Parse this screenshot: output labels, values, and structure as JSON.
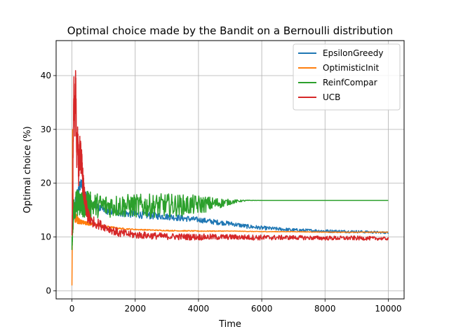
{
  "chart_data": {
    "type": "line",
    "title": "Optimal choice made by the Bandit on a Bernoulli distribution",
    "xlabel": "Time",
    "ylabel": "Optimal choice (%)",
    "xlim": [
      -500,
      10500
    ],
    "ylim": [
      -1.5,
      46.5
    ],
    "x_ticks": [
      0,
      2000,
      4000,
      6000,
      8000,
      10000
    ],
    "y_ticks": [
      0,
      10,
      20,
      30,
      40
    ],
    "grid": true,
    "legend_position": "top-right",
    "series": [
      {
        "name": "EpsilonGreedy",
        "color": "#1f77b4",
        "x": [
          0,
          50,
          100,
          150,
          200,
          250,
          300,
          350,
          400,
          500,
          600,
          800,
          1000,
          1500,
          2000,
          2500,
          3000,
          3500,
          4000,
          4500,
          5000,
          5500,
          6000,
          7000,
          8000,
          9000,
          10000
        ],
        "y": [
          11,
          14,
          16,
          17.5,
          18.5,
          19.5,
          20,
          19,
          18,
          17,
          16,
          15.5,
          15,
          14.5,
          14.2,
          14,
          13.8,
          13.5,
          13.2,
          12.8,
          12.5,
          12,
          11.7,
          11.3,
          11.1,
          11,
          10.8
        ],
        "noise": [
          0.3,
          1.5,
          1.2,
          1,
          1,
          0.9,
          0.8,
          0.8,
          0.8,
          0.8,
          0.8,
          0.7,
          0.7,
          0.7,
          0.7,
          0.7,
          0.6,
          0.6,
          0.5,
          0.5,
          0.4,
          0.4,
          0.35,
          0.3,
          0.3,
          0.25,
          0.2
        ]
      },
      {
        "name": "OptimisticInit",
        "color": "#ff7f0e",
        "x": [
          0,
          10,
          20,
          30,
          50,
          80,
          120,
          200,
          300,
          500,
          800,
          1000,
          1500,
          2000,
          3000,
          4000,
          5000,
          6000,
          7000,
          8000,
          9000,
          10000
        ],
        "y": [
          1,
          10,
          30,
          20,
          15,
          14,
          13.5,
          13,
          12.8,
          12.5,
          12.2,
          12,
          11.6,
          11.4,
          11.2,
          11.1,
          11.1,
          11,
          11,
          10.9,
          10.9,
          10.9
        ],
        "noise": [
          0,
          2,
          2,
          2,
          1.5,
          1.2,
          1,
          0.6,
          0.4,
          0.3,
          0.2,
          0.2,
          0.15,
          0.1,
          0.1,
          0.1,
          0.05,
          0.05,
          0.05,
          0.05,
          0.05,
          0.05
        ]
      },
      {
        "name": "ReinfCompar",
        "color": "#2ca02c",
        "x": [
          0,
          50,
          100,
          200,
          300,
          500,
          1000,
          1500,
          2000,
          2500,
          3000,
          3500,
          4000,
          4500,
          5000,
          5300,
          5600,
          6000,
          7000,
          8000,
          9000,
          10000
        ],
        "y": [
          8.5,
          15,
          16,
          16.5,
          16.2,
          16,
          15.8,
          15.8,
          15.8,
          15.8,
          15.9,
          15.9,
          16,
          16.2,
          16.5,
          16.7,
          16.8,
          16.8,
          16.8,
          16.8,
          16.8,
          16.8
        ],
        "noise": [
          1,
          2.5,
          2.5,
          2.5,
          2.5,
          2.5,
          2.2,
          2.2,
          2.2,
          2.2,
          2.2,
          2.0,
          1.8,
          1.2,
          0.5,
          0.2,
          0.05,
          0,
          0,
          0,
          0,
          0
        ]
      },
      {
        "name": "UCB",
        "color": "#d62728",
        "x": [
          0,
          30,
          60,
          90,
          120,
          150,
          180,
          210,
          250,
          300,
          350,
          400,
          500,
          600,
          800,
          1000,
          1500,
          2000,
          3000,
          4000,
          5000,
          6000,
          7000,
          8000,
          9000,
          10000
        ],
        "y": [
          10,
          20,
          38,
          30,
          40,
          25,
          30,
          22,
          26,
          24,
          20,
          17,
          14,
          13,
          12.5,
          12,
          10.7,
          10.4,
          10.1,
          10,
          10,
          9.9,
          9.9,
          9.8,
          9.8,
          9.7
        ],
        "noise": [
          1,
          4,
          3,
          4,
          3,
          4,
          3,
          3,
          3,
          3,
          2.5,
          2,
          1.5,
          1,
          1,
          0.8,
          0.8,
          0.7,
          0.6,
          0.6,
          0.5,
          0.5,
          0.4,
          0.4,
          0.4,
          0.3
        ]
      }
    ]
  }
}
